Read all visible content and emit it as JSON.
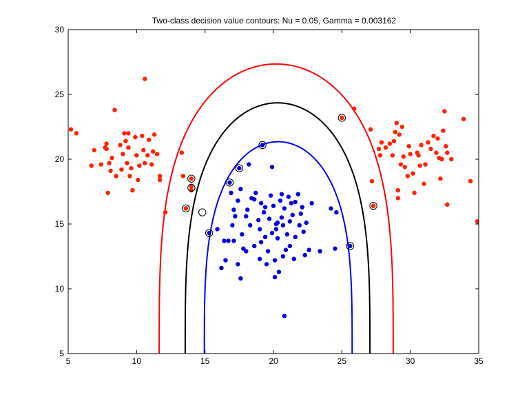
{
  "chart_data": {
    "type": "scatter",
    "title": "Two-class decision value contours: Nu =  0.05, Gamma = 0.003162",
    "xlabel": "",
    "ylabel": "",
    "xlim": [
      5,
      35
    ],
    "ylim": [
      5,
      30
    ],
    "xticks": [
      5,
      10,
      15,
      20,
      25,
      30,
      35
    ],
    "yticks": [
      5,
      10,
      15,
      20,
      25,
      30
    ],
    "grid": false,
    "legend": "none",
    "colors": {
      "class_a": "#ff2000",
      "class_b": "#0000dd",
      "outer_contour": "#ff0000",
      "middle_contour": "#000000",
      "inner_contour": "#0000ff",
      "support_vector_ring": "#000000"
    },
    "series": [
      {
        "name": "class_a",
        "color": "#ff2000",
        "points": [
          [
            5.2,
            22.3
          ],
          [
            5.6,
            22.0
          ],
          [
            6.7,
            19.5
          ],
          [
            6.9,
            20.7
          ],
          [
            7.4,
            19.6
          ],
          [
            7.7,
            20.9
          ],
          [
            7.8,
            21.2
          ],
          [
            7.8,
            20.8
          ],
          [
            7.9,
            17.4
          ],
          [
            8.0,
            19.7
          ],
          [
            8.1,
            19.1
          ],
          [
            8.2,
            20.1
          ],
          [
            8.4,
            23.8
          ],
          [
            8.5,
            18.7
          ],
          [
            8.8,
            21.1
          ],
          [
            8.9,
            19.2
          ],
          [
            9.0,
            20.4
          ],
          [
            9.1,
            22.0
          ],
          [
            9.2,
            21.4
          ],
          [
            9.3,
            19.7
          ],
          [
            9.4,
            22.0
          ],
          [
            9.4,
            20.9
          ],
          [
            9.5,
            18.7
          ],
          [
            9.6,
            19.3
          ],
          [
            9.7,
            17.6
          ],
          [
            9.9,
            21.7
          ],
          [
            10.0,
            20.3
          ],
          [
            10.1,
            18.4
          ],
          [
            10.2,
            19.5
          ],
          [
            10.4,
            21.8
          ],
          [
            10.5,
            20.7
          ],
          [
            10.6,
            26.2
          ],
          [
            10.6,
            19.7
          ],
          [
            10.8,
            20.3
          ],
          [
            10.9,
            21.5
          ],
          [
            11.1,
            19.6
          ],
          [
            11.2,
            20.6
          ],
          [
            11.3,
            21.9
          ],
          [
            11.5,
            20.4
          ],
          [
            11.7,
            18.7
          ],
          [
            11.7,
            18.4
          ],
          [
            12.1,
            15.9
          ],
          [
            13.3,
            20.5
          ],
          [
            13.4,
            18.7
          ],
          [
            13.6,
            16.2
          ],
          [
            14.0,
            18.5
          ],
          [
            14.0,
            17.9
          ],
          [
            14.0,
            17.6
          ],
          [
            25.0,
            23.2
          ],
          [
            25.9,
            23.9
          ],
          [
            27.1,
            22.3
          ],
          [
            27.2,
            18.3
          ],
          [
            27.3,
            16.4
          ],
          [
            27.7,
            20.8
          ],
          [
            27.8,
            20.3
          ],
          [
            27.9,
            21.3
          ],
          [
            28.2,
            20.9
          ],
          [
            28.5,
            21.2
          ],
          [
            28.7,
            20.3
          ],
          [
            28.8,
            21.4
          ],
          [
            28.9,
            22.1
          ],
          [
            29.0,
            22.8
          ],
          [
            29.1,
            17.0
          ],
          [
            29.1,
            17.6
          ],
          [
            29.2,
            21.9
          ],
          [
            29.3,
            19.6
          ],
          [
            29.4,
            22.5
          ],
          [
            29.5,
            20.2
          ],
          [
            29.6,
            19.4
          ],
          [
            29.8,
            18.7
          ],
          [
            29.9,
            21.0
          ],
          [
            30.0,
            20.4
          ],
          [
            30.2,
            18.9
          ],
          [
            30.3,
            17.4
          ],
          [
            30.5,
            20.5
          ],
          [
            30.6,
            20.3
          ],
          [
            30.7,
            19.5
          ],
          [
            30.8,
            21.1
          ],
          [
            31.0,
            18.1
          ],
          [
            31.1,
            19.6
          ],
          [
            31.3,
            21.3
          ],
          [
            31.5,
            20.8
          ],
          [
            31.7,
            21.8
          ],
          [
            31.9,
            20.5
          ],
          [
            32.0,
            21.6
          ],
          [
            32.1,
            20.1
          ],
          [
            32.2,
            18.5
          ],
          [
            32.3,
            20.0
          ],
          [
            32.4,
            22.2
          ],
          [
            32.5,
            23.7
          ],
          [
            32.6,
            21.0
          ],
          [
            32.7,
            20.5
          ],
          [
            32.7,
            16.5
          ],
          [
            33.0,
            20.0
          ],
          [
            33.9,
            23.1
          ],
          [
            34.4,
            18.3
          ],
          [
            34.9,
            15.2
          ]
        ]
      },
      {
        "name": "class_b",
        "color": "#0000dd",
        "points": [
          [
            15.3,
            14.3
          ],
          [
            15.9,
            14.6
          ],
          [
            16.2,
            11.6
          ],
          [
            16.4,
            13.7
          ],
          [
            16.5,
            12.2
          ],
          [
            16.7,
            13.7
          ],
          [
            16.8,
            18.2
          ],
          [
            16.9,
            17.4
          ],
          [
            17.0,
            14.9
          ],
          [
            17.1,
            16.1
          ],
          [
            17.1,
            13.7
          ],
          [
            17.2,
            15.6
          ],
          [
            17.4,
            16.8
          ],
          [
            17.4,
            11.9
          ],
          [
            17.5,
            19.3
          ],
          [
            17.6,
            17.7
          ],
          [
            17.6,
            10.8
          ],
          [
            17.7,
            14.2
          ],
          [
            17.8,
            13.1
          ],
          [
            18.0,
            12.9
          ],
          [
            18.0,
            15.6
          ],
          [
            18.1,
            16.1
          ],
          [
            18.2,
            19.6
          ],
          [
            18.3,
            14.9
          ],
          [
            18.4,
            17.0
          ],
          [
            18.6,
            13.3
          ],
          [
            18.6,
            16.9
          ],
          [
            18.7,
            17.4
          ],
          [
            18.9,
            15.3
          ],
          [
            19.0,
            14.6
          ],
          [
            19.0,
            12.3
          ],
          [
            19.1,
            16.6
          ],
          [
            19.1,
            13.6
          ],
          [
            19.2,
            21.1
          ],
          [
            19.3,
            15.9
          ],
          [
            19.4,
            16.3
          ],
          [
            19.4,
            14.0
          ],
          [
            19.5,
            11.9
          ],
          [
            19.6,
            12.9
          ],
          [
            19.7,
            15.4
          ],
          [
            19.8,
            17.2
          ],
          [
            19.9,
            14.3
          ],
          [
            19.9,
            19.4
          ],
          [
            20.0,
            16.4
          ],
          [
            20.1,
            12.2
          ],
          [
            20.1,
            10.9
          ],
          [
            20.2,
            15.0
          ],
          [
            20.2,
            14.6
          ],
          [
            20.3,
            15.1
          ],
          [
            20.3,
            13.9
          ],
          [
            20.4,
            11.3
          ],
          [
            20.5,
            16.8
          ],
          [
            20.6,
            15.5
          ],
          [
            20.6,
            17.3
          ],
          [
            20.7,
            14.9
          ],
          [
            20.7,
            12.5
          ],
          [
            20.8,
            16.2
          ],
          [
            20.8,
            7.9
          ],
          [
            20.9,
            13.0
          ],
          [
            21.0,
            14.2
          ],
          [
            21.1,
            17.1
          ],
          [
            21.2,
            15.2
          ],
          [
            21.2,
            13.3
          ],
          [
            21.3,
            16.6
          ],
          [
            21.4,
            15.7
          ],
          [
            21.5,
            12.3
          ],
          [
            21.6,
            14.0
          ],
          [
            21.6,
            16.7
          ],
          [
            21.8,
            17.3
          ],
          [
            21.9,
            14.9
          ],
          [
            22.0,
            15.8
          ],
          [
            22.1,
            16.3
          ],
          [
            22.2,
            14.4
          ],
          [
            22.3,
            12.6
          ],
          [
            22.4,
            15.1
          ],
          [
            22.6,
            13.0
          ],
          [
            22.8,
            16.6
          ],
          [
            23.4,
            12.9
          ],
          [
            24.2,
            16.2
          ],
          [
            24.5,
            13.1
          ],
          [
            24.6,
            15.9
          ],
          [
            25.6,
            13.3
          ]
        ]
      }
    ],
    "support_vectors": [
      [
        25.0,
        23.2
      ],
      [
        19.2,
        21.1
      ],
      [
        17.5,
        19.3
      ],
      [
        16.8,
        18.2
      ],
      [
        14.0,
        18.5
      ],
      [
        14.0,
        17.8
      ],
      [
        13.6,
        16.2
      ],
      [
        14.8,
        15.9
      ],
      [
        15.3,
        14.3
      ],
      [
        27.3,
        16.4
      ],
      [
        25.6,
        13.3
      ]
    ],
    "contours": [
      {
        "name": "outer_contour",
        "level": -1,
        "color": "#ff0000",
        "center_x": 20.2,
        "y_top": 27.35,
        "ylo": 5,
        "half_width_at_bottom": 8.55
      },
      {
        "name": "middle_contour",
        "level": 0,
        "color": "#000000",
        "center_x": 20.3,
        "y_top": 24.35,
        "ylo": 5,
        "half_width_at_bottom": 6.75
      },
      {
        "name": "inner_contour",
        "level": 1,
        "color": "#0000ff",
        "center_x": 20.35,
        "y_top": 21.35,
        "ylo": 5,
        "half_width_at_bottom": 5.4
      }
    ]
  }
}
